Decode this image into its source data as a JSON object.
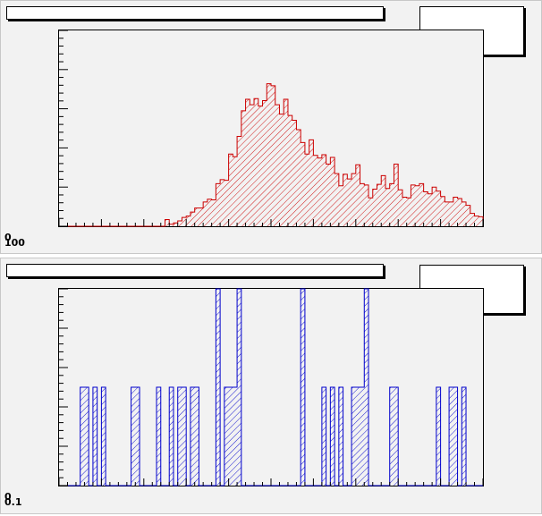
{
  "colors": {
    "panel_bg": "#f2f2f2",
    "hist_top": "#cc0000",
    "hist_bottom": "#0000cc",
    "axis": "#000000"
  },
  "panels": {
    "top": {
      "title": "",
      "stats": ""
    },
    "bottom": {
      "title": "",
      "stats": ""
    }
  },
  "chart_data": [
    {
      "type": "bar",
      "style": "step-histogram with diagonal hatch fill",
      "color": "#cc0000",
      "grid": false,
      "x": {
        "bins": 100,
        "range": [
          0,
          100
        ]
      },
      "ylim": [
        0,
        290
      ],
      "values": [
        0,
        0,
        0,
        0,
        0,
        0,
        0,
        0,
        0,
        0,
        0,
        0,
        0,
        0,
        0,
        0,
        0,
        0,
        0,
        0,
        0,
        0,
        0,
        0,
        0,
        10,
        3,
        5,
        8,
        13,
        15,
        21,
        27,
        27,
        36,
        40,
        39,
        63,
        69,
        68,
        107,
        103,
        133,
        171,
        188,
        180,
        189,
        178,
        186,
        211,
        208,
        180,
        166,
        188,
        164,
        157,
        143,
        124,
        107,
        128,
        105,
        101,
        106,
        92,
        102,
        78,
        60,
        77,
        70,
        78,
        91,
        63,
        61,
        42,
        55,
        62,
        75,
        56,
        63,
        92,
        54,
        43,
        42,
        61,
        60,
        63,
        51,
        48,
        58,
        52,
        44,
        36,
        36,
        43,
        41,
        36,
        31,
        19,
        15,
        14
      ],
      "tick_labels_y": [
        "0",
        "100"
      ]
    },
    {
      "type": "bar",
      "style": "sparse histogram with diagonal hatch fill",
      "color": "#0000cc",
      "grid": false,
      "x": {
        "bins": 100,
        "range": [
          0,
          100
        ]
      },
      "ylim": [
        0,
        2
      ],
      "values": [
        0,
        0,
        0,
        0,
        0,
        1,
        1,
        0,
        1,
        0,
        1,
        0,
        0,
        0,
        0,
        0,
        0,
        1,
        1,
        0,
        0,
        0,
        0,
        1,
        0,
        0,
        1,
        0,
        1,
        1,
        0,
        1,
        1,
        0,
        0,
        0,
        0,
        2,
        0,
        1,
        1,
        1,
        2,
        0,
        0,
        0,
        0,
        0,
        0,
        0,
        0,
        0,
        0,
        0,
        0,
        0,
        0,
        2,
        0,
        0,
        0,
        0,
        1,
        0,
        1,
        0,
        1,
        0,
        0,
        1,
        1,
        1,
        2,
        0,
        0,
        0,
        0,
        0,
        1,
        1,
        0,
        0,
        0,
        0,
        0,
        0,
        0,
        0,
        0,
        1,
        0,
        0,
        1,
        1,
        0,
        1,
        0,
        0,
        0,
        0
      ],
      "tick_labels_y": [
        "0",
        "0.1"
      ]
    }
  ]
}
